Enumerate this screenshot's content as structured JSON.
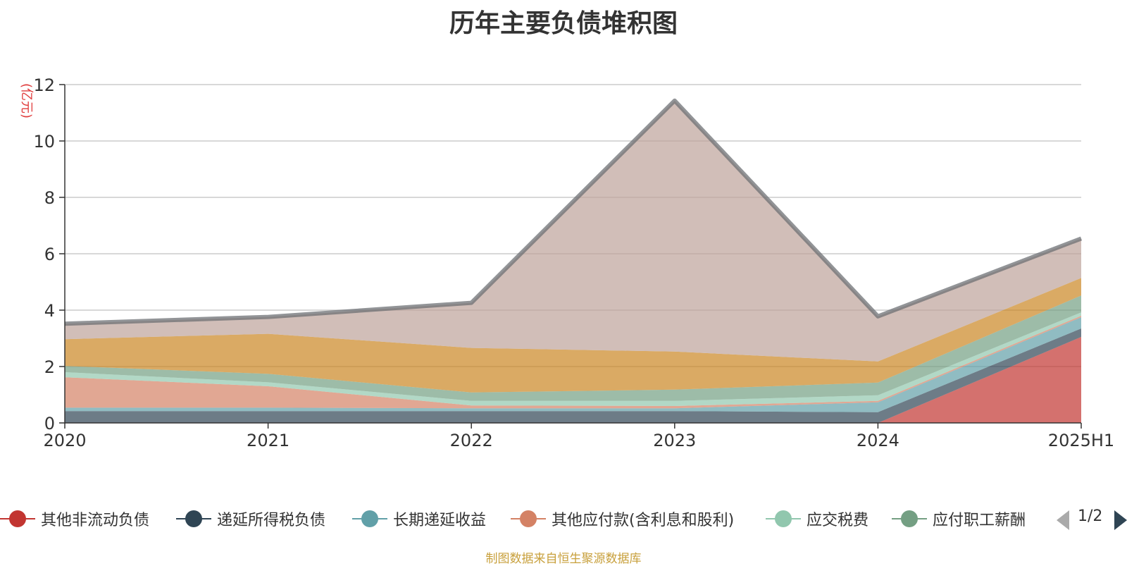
{
  "chart_data": {
    "type": "area",
    "stacked": true,
    "title": "历年主要负债堆积图",
    "ylabel": "(亿元)",
    "categories": [
      "2020",
      "2021",
      "2022",
      "2023",
      "2024",
      "2025H1"
    ],
    "yticks": [
      "0",
      "2",
      "4",
      "6",
      "8",
      "10",
      "12"
    ],
    "ylim": [
      0,
      12
    ],
    "grid": true,
    "legend_position": "bottom",
    "series": [
      {
        "name": "其他非流动负债",
        "color": "#c23531",
        "values": [
          0,
          0,
          0,
          0,
          0,
          3.05
        ]
      },
      {
        "name": "递延所得税负债",
        "color": "#2f4554",
        "values": [
          0.42,
          0.42,
          0.42,
          0.42,
          0.38,
          0.3
        ]
      },
      {
        "name": "长期递延收益",
        "color": "#61a0a8",
        "values": [
          0.12,
          0.12,
          0.1,
          0.1,
          0.35,
          0.4
        ]
      },
      {
        "name": "其他应付款(含利息和股利)",
        "color": "#d48265",
        "values": [
          1.08,
          0.76,
          0.1,
          0.08,
          0.05,
          0.05
        ]
      },
      {
        "name": "应交税费",
        "color": "#91c7ae",
        "values": [
          0.18,
          0.14,
          0.16,
          0.18,
          0.2,
          0.12
        ]
      },
      {
        "name": "应付职工薪酬",
        "color": "#749f83",
        "values": [
          0.22,
          0.3,
          0.3,
          0.4,
          0.45,
          0.6
        ]
      },
      {
        "name": "",
        "color": "#ca8622",
        "values": [
          0.95,
          1.42,
          1.58,
          1.35,
          0.75,
          0.62
        ]
      },
      {
        "name": "",
        "color": "#bda29a",
        "values": [
          0.55,
          0.6,
          1.6,
          8.9,
          1.6,
          1.4
        ]
      }
    ],
    "total_line_color": "#6e7074"
  },
  "legend": {
    "items": [
      "其他非流动负债",
      "递延所得税负债",
      "长期递延收益",
      "其他应付款(含利息和股利)",
      "应交税费",
      "应付职工薪酬"
    ],
    "page": "1/2"
  },
  "source_note": "制图数据来自恒生聚源数据库"
}
